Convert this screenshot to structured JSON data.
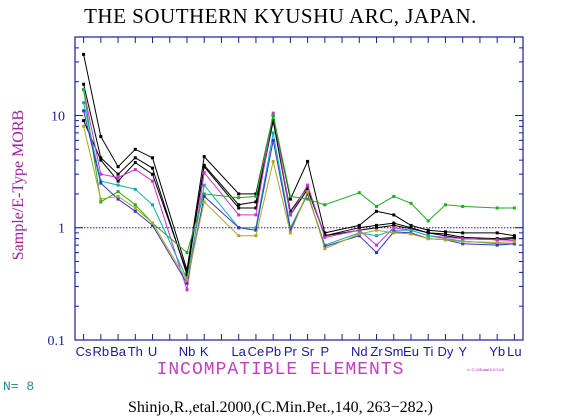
{
  "chart_data": {
    "type": "line",
    "title": "THE SOUTHERN KYUSHU ARC, JAPAN.",
    "ylabel": "Sample/E-Type MORB",
    "xlabel": "INCOMPATIBLE ELEMENTS",
    "y_scale": "log",
    "ylim": [
      0.1,
      50
    ],
    "y_ticks": [
      "0.1",
      "1",
      "10"
    ],
    "reference_line": 1,
    "categories": [
      "Cs",
      "Rb",
      "Ba",
      "Th",
      "U",
      "Nb",
      "K",
      "La",
      "Ce",
      "Pb",
      "Pr",
      "Sr",
      "P",
      "Nd",
      "Zr",
      "Sm",
      "Eu",
      "Ti",
      "Dy",
      "Y",
      "Yb",
      "Lu"
    ],
    "x_labels": [
      "Cs",
      "Rb",
      "Ba",
      "Th",
      "U",
      "",
      "Nb",
      "K",
      "",
      "La",
      "Ce",
      "Pb",
      "Pr",
      "Sr",
      "P",
      "",
      "Nd",
      "Zr",
      "Sm",
      "Eu",
      "Ti",
      "Dy",
      "Y",
      "",
      "Yb",
      "Lu"
    ],
    "x_index": [
      0,
      1,
      2,
      3,
      4,
      6,
      7,
      9,
      10,
      11,
      12,
      13,
      14,
      16,
      17,
      18,
      19,
      20,
      21,
      22,
      24,
      25
    ],
    "colors": {
      "frame": "#1a1aa0",
      "reference": "#1a1aa0",
      "tick_label": "#1a1aa0",
      "title": "#000000",
      "ylabel": "#a0209c",
      "xlabel": "#c040c0"
    },
    "n_label": "N= 8",
    "path_label": "⇐ C:\\GData\\S-KYUS",
    "credit": "Shinjo,R.,etal.2000,(C.Min.Pet.,140,  263−282.)",
    "series": [
      {
        "color": "#000000",
        "values": [
          35,
          6.5,
          3.5,
          5.0,
          4.2,
          0.42,
          4.3,
          2.0,
          2.0,
          10.0,
          1.8,
          3.9,
          0.9,
          1.05,
          1.4,
          1.3,
          1.05,
          0.95,
          0.92,
          0.9,
          0.9,
          0.85
        ]
      },
      {
        "color": "#000000",
        "values": [
          19,
          4.2,
          3.0,
          4.2,
          3.4,
          0.38,
          3.6,
          1.6,
          1.7,
          9.0,
          1.4,
          2.3,
          0.85,
          1.0,
          1.05,
          1.1,
          1.0,
          0.9,
          0.88,
          0.82,
          0.8,
          0.82
        ]
      },
      {
        "color": "#000000",
        "values": [
          9,
          4.0,
          2.6,
          3.8,
          3.0,
          0.4,
          3.5,
          1.5,
          1.5,
          9.0,
          1.3,
          2.2,
          0.85,
          0.95,
          1.0,
          1.05,
          0.98,
          0.9,
          0.85,
          0.8,
          0.78,
          0.8
        ]
      },
      {
        "color": "#cc33cc",
        "values": [
          17,
          3.0,
          2.8,
          3.3,
          2.6,
          0.28,
          3.1,
          1.3,
          1.3,
          10.5,
          1.3,
          2.4,
          0.82,
          0.95,
          0.7,
          1.0,
          0.95,
          0.85,
          0.82,
          0.8,
          0.78,
          0.77
        ]
      },
      {
        "color": "#22aa22",
        "values": [
          17,
          1.7,
          2.1,
          1.6,
          1.1,
          0.6,
          2.0,
          1.85,
          1.9,
          10.0,
          1.9,
          1.8,
          1.6,
          2.05,
          1.55,
          1.9,
          1.65,
          1.15,
          1.6,
          1.55,
          1.5,
          1.5
        ]
      },
      {
        "color": "#11aaaa",
        "values": [
          13,
          2.6,
          2.4,
          2.2,
          1.6,
          0.35,
          2.4,
          1.0,
          1.0,
          7.0,
          1.0,
          2.0,
          0.7,
          0.9,
          0.85,
          0.95,
          0.95,
          0.85,
          0.8,
          0.76,
          0.72,
          0.72
        ]
      },
      {
        "color": "#3333cc",
        "values": [
          11,
          2.5,
          1.8,
          1.4,
          1.05,
          0.32,
          1.9,
          1.0,
          0.95,
          6.0,
          0.95,
          2.0,
          0.68,
          0.85,
          0.6,
          0.92,
          0.9,
          0.8,
          0.78,
          0.72,
          0.7,
          0.72
        ]
      },
      {
        "color": "#aaaa22",
        "values": [
          8,
          1.8,
          1.9,
          1.5,
          1.1,
          0.34,
          1.7,
          0.85,
          0.85,
          3.9,
          0.9,
          2.1,
          0.65,
          0.88,
          0.95,
          0.9,
          0.88,
          0.8,
          0.78,
          0.75,
          0.74,
          0.75
        ]
      }
    ]
  }
}
